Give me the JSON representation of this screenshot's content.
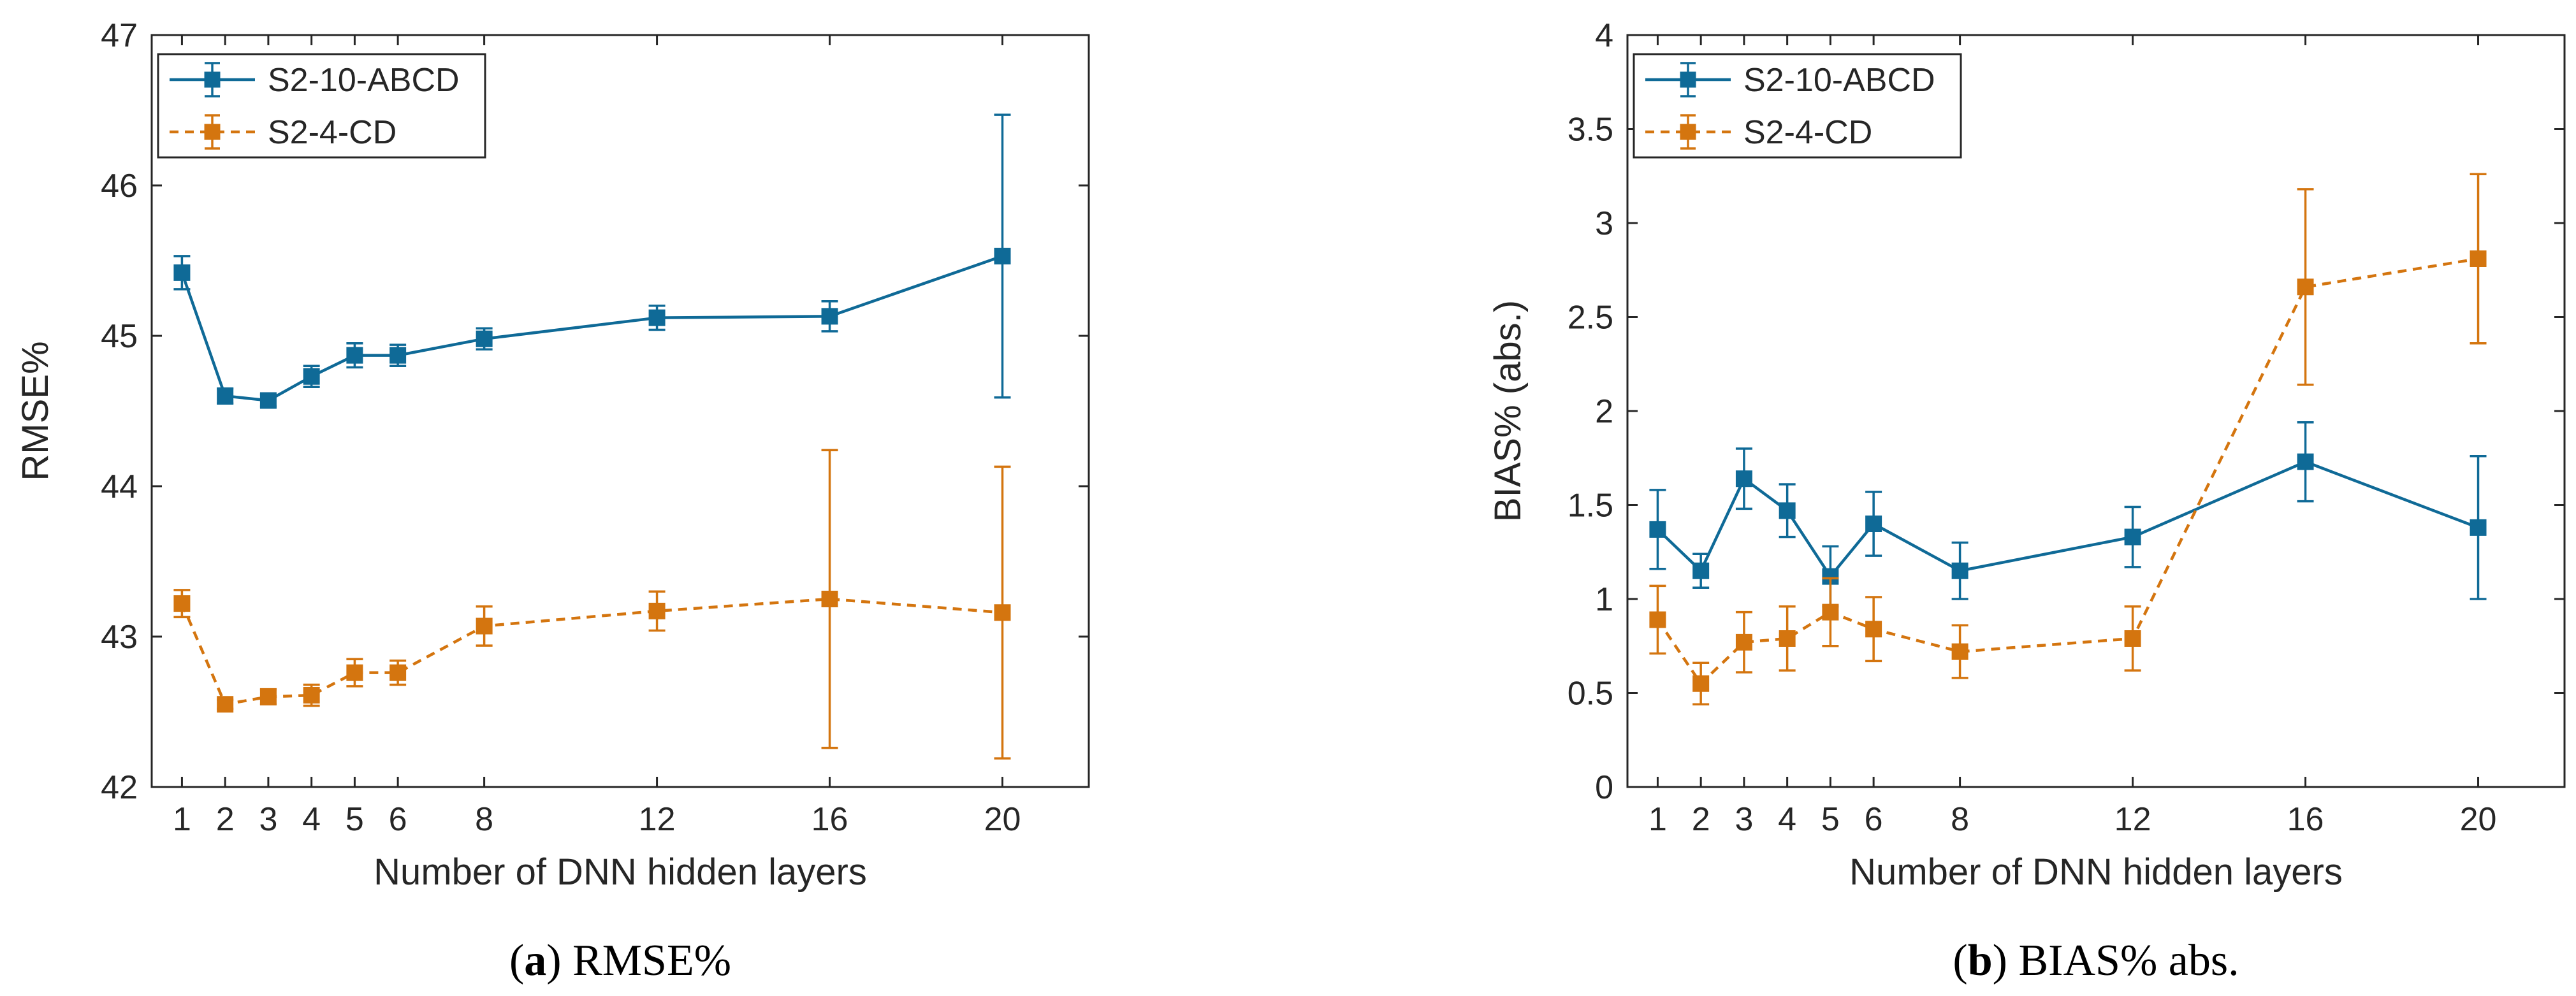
{
  "chart_data": [
    {
      "type": "line",
      "title": "",
      "xlabel": "Number of DNN hidden layers",
      "ylabel": "RMSE%",
      "categories": [
        "1",
        "2",
        "3",
        "4",
        "5",
        "6",
        "8",
        "12",
        "16",
        "20"
      ],
      "x": [
        1,
        2,
        3,
        4,
        5,
        6,
        8,
        12,
        16,
        20
      ],
      "xlim": [
        0.3,
        22.0
      ],
      "ylim": [
        42,
        47
      ],
      "yticks": [
        "42",
        "43",
        "44",
        "45",
        "46",
        "47"
      ],
      "grid": false,
      "legend_position": "top-left",
      "series": [
        {
          "name": "S2-10-ABCD",
          "color": "#0f6a97",
          "line_style": "solid",
          "marker": "square",
          "values": [
            45.42,
            44.6,
            44.57,
            44.73,
            44.87,
            44.87,
            44.98,
            45.12,
            45.13,
            45.53
          ],
          "error": [
            0.11,
            0.05,
            0.04,
            0.07,
            0.08,
            0.07,
            0.07,
            0.08,
            0.1,
            0.94
          ]
        },
        {
          "name": "S2-4-CD",
          "color": "#d4750f",
          "line_style": "dashed",
          "marker": "square",
          "values": [
            43.22,
            42.55,
            42.6,
            42.61,
            42.76,
            42.76,
            43.07,
            43.17,
            43.25,
            43.16
          ],
          "error": [
            0.09,
            0.03,
            0.05,
            0.07,
            0.09,
            0.08,
            0.13,
            0.13,
            0.99,
            0.97
          ]
        }
      ],
      "caption": {
        "letter": "a",
        "text": "RMSE%"
      }
    },
    {
      "type": "line",
      "title": "",
      "xlabel": "Number of DNN hidden layers",
      "ylabel": "BIAS% (abs.)",
      "categories": [
        "1",
        "2",
        "3",
        "4",
        "5",
        "6",
        "8",
        "12",
        "16",
        "20"
      ],
      "x": [
        1,
        2,
        3,
        4,
        5,
        6,
        8,
        12,
        16,
        20
      ],
      "xlim": [
        0.3,
        22.0
      ],
      "ylim": [
        0,
        4
      ],
      "yticks": [
        "0",
        "0.5",
        "1",
        "1.5",
        "2",
        "2.5",
        "3",
        "3.5",
        "4"
      ],
      "grid": false,
      "legend_position": "top-left",
      "series": [
        {
          "name": "S2-10-ABCD",
          "color": "#0f6a97",
          "line_style": "solid",
          "marker": "square",
          "values": [
            1.37,
            1.15,
            1.64,
            1.47,
            1.12,
            1.4,
            1.15,
            1.33,
            1.73,
            1.38
          ],
          "error": [
            0.21,
            0.09,
            0.16,
            0.14,
            0.16,
            0.17,
            0.15,
            0.16,
            0.21,
            0.38
          ]
        },
        {
          "name": "S2-4-CD",
          "color": "#d4750f",
          "line_style": "dashed",
          "marker": "square",
          "values": [
            0.89,
            0.55,
            0.77,
            0.79,
            0.93,
            0.84,
            0.72,
            0.79,
            2.66,
            2.81
          ],
          "error": [
            0.18,
            0.11,
            0.16,
            0.17,
            0.18,
            0.17,
            0.14,
            0.17,
            0.52,
            0.45
          ]
        }
      ],
      "caption": {
        "letter": "b",
        "text": "BIAS% abs."
      }
    }
  ]
}
